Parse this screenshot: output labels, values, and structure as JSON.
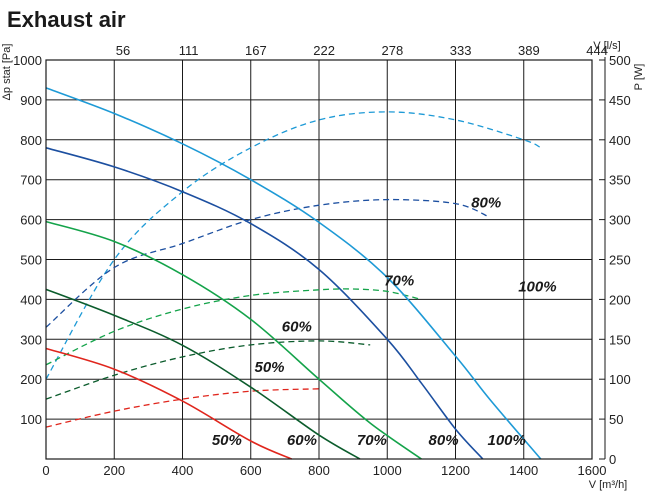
{
  "chart_data": {
    "type": "line",
    "title": "Exhaust air",
    "xlabel": "V [m³/h]",
    "x2label": "V [l/s]",
    "ylabel": "Δp stat [Pa]",
    "y2label": "P [W]",
    "xlim": [
      0,
      1600
    ],
    "ylim": [
      0,
      1000
    ],
    "y2lim": [
      0,
      500
    ],
    "grid": true,
    "x_ticks": [
      "0",
      "200",
      "400",
      "600",
      "800",
      "1000",
      "1200",
      "1400",
      "1600"
    ],
    "x2_ticks": [
      "56",
      "111",
      "167",
      "222",
      "278",
      "333",
      "389",
      "444"
    ],
    "y_ticks": [
      "100",
      "200",
      "300",
      "400",
      "500",
      "600",
      "700",
      "800",
      "900",
      "1000"
    ],
    "y2_ticks": [
      "0",
      "50",
      "100",
      "150",
      "200",
      "250",
      "300",
      "350",
      "400",
      "450",
      "500"
    ],
    "pressure_curves": [
      {
        "label": "100%",
        "color": "#1e9ad6",
        "x": [
          0,
          200,
          400,
          600,
          800,
          1000,
          1200,
          1300,
          1450
        ],
        "y": [
          930,
          866,
          790,
          700,
          593,
          455,
          258,
          150,
          0
        ]
      },
      {
        "label": "80%",
        "color": "#1c4fa0",
        "x": [
          0,
          200,
          400,
          600,
          800,
          1000,
          1100,
          1200,
          1280
        ],
        "y": [
          780,
          732,
          670,
          590,
          475,
          300,
          190,
          75,
          0
        ]
      },
      {
        "label": "70%",
        "color": "#14a34a",
        "x": [
          0,
          200,
          400,
          600,
          800,
          950,
          1100
        ],
        "y": [
          595,
          545,
          462,
          350,
          200,
          90,
          0
        ]
      },
      {
        "label": "60%",
        "color": "#0b5c2c",
        "x": [
          0,
          200,
          400,
          600,
          800,
          920
        ],
        "y": [
          425,
          360,
          285,
          180,
          60,
          0
        ]
      },
      {
        "label": "50%",
        "color": "#e0261d",
        "x": [
          0,
          200,
          400,
          600,
          720
        ],
        "y": [
          277,
          225,
          145,
          45,
          0
        ]
      }
    ],
    "power_curves": [
      {
        "label": "100%",
        "color": "#1e9ad6",
        "x": [
          0,
          200,
          400,
          600,
          800,
          1000,
          1200,
          1400,
          1450
        ],
        "y": [
          100,
          250,
          335,
          390,
          425,
          435,
          425,
          400,
          390
        ]
      },
      {
        "label": "80%",
        "color": "#1c4fa0",
        "x": [
          0,
          200,
          400,
          600,
          800,
          1000,
          1200,
          1300
        ],
        "y": [
          165,
          240,
          270,
          300,
          318,
          325,
          320,
          303
        ]
      },
      {
        "label": "70%",
        "color": "#14a34a",
        "x": [
          0,
          200,
          400,
          600,
          800,
          900,
          1000,
          1100
        ],
        "y": [
          118,
          160,
          188,
          205,
          212,
          213,
          210,
          200
        ]
      },
      {
        "label": "60%",
        "color": "#0b5c2c",
        "x": [
          0,
          200,
          400,
          600,
          800,
          950
        ],
        "y": [
          75,
          105,
          128,
          143,
          148,
          143
        ]
      },
      {
        "label": "50%",
        "color": "#e0261d",
        "x": [
          0,
          200,
          400,
          600,
          800
        ],
        "y": [
          40,
          60,
          75,
          85,
          88
        ]
      }
    ],
    "speed_labels_top": [
      {
        "text": "100%",
        "x": 1440,
        "y": 420
      },
      {
        "text": "80%",
        "x": 1290,
        "y": 630
      },
      {
        "text": "70%",
        "x": 1035,
        "y": 435
      },
      {
        "text": "60%",
        "x": 735,
        "y": 320
      },
      {
        "text": "50%",
        "x": 655,
        "y": 218
      }
    ],
    "speed_labels_bottom": [
      {
        "text": "50%",
        "x": 530,
        "y": 35
      },
      {
        "text": "60%",
        "x": 750,
        "y": 35
      },
      {
        "text": "70%",
        "x": 955,
        "y": 35
      },
      {
        "text": "80%",
        "x": 1165,
        "y": 35
      },
      {
        "text": "100%",
        "x": 1350,
        "y": 35
      }
    ]
  }
}
